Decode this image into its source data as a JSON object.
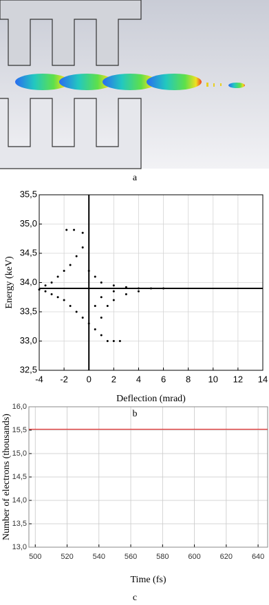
{
  "panel_labels": [
    "a",
    "b",
    "c"
  ],
  "chart_data": [
    {
      "type": "scatter",
      "xlabel": "Deflection (mrad)",
      "ylabel": "Energy (keV)",
      "x": [
        -4,
        -3.5,
        -3,
        -2.5,
        -2,
        -1.5,
        -1,
        -0.5,
        -1.8,
        -1.2,
        -0.5,
        0,
        0.5,
        1,
        2,
        3,
        4,
        5,
        6,
        -3.5,
        -3,
        -2.5,
        -2,
        -1.5,
        -1,
        -0.5,
        0,
        0.5,
        1,
        1.5,
        2,
        2.5,
        1,
        1.5,
        2,
        3,
        4,
        0.5,
        1,
        2
      ],
      "y": [
        33.88,
        33.95,
        34.0,
        34.1,
        34.2,
        34.3,
        34.45,
        34.6,
        34.9,
        34.9,
        34.85,
        34.2,
        34.1,
        34.0,
        33.95,
        33.92,
        33.9,
        33.9,
        33.9,
        33.85,
        33.8,
        33.75,
        33.7,
        33.6,
        33.5,
        33.4,
        33.3,
        33.2,
        33.1,
        33.0,
        33.0,
        33.0,
        33.4,
        33.6,
        33.7,
        33.8,
        33.85,
        33.6,
        33.75,
        33.85
      ],
      "color": "#000000",
      "reference_lines": {
        "x": 0,
        "y": 33.9
      },
      "xlim": [
        -4,
        14
      ],
      "xticks": [
        -4,
        -2,
        0,
        2,
        4,
        6,
        8,
        10,
        12,
        14
      ],
      "ylim": [
        32.5,
        35.5
      ],
      "yticks": [
        {
          "value": 32.5,
          "label": "32,5"
        },
        {
          "value": 33,
          "label": "33,0"
        },
        {
          "value": 33.5,
          "label": "33,5"
        },
        {
          "value": 34,
          "label": "34,0"
        },
        {
          "value": 34.5,
          "label": "34,5"
        },
        {
          "value": 35,
          "label": "35,0"
        },
        {
          "value": 35.5,
          "label": "35,5"
        }
      ],
      "grid": true
    },
    {
      "type": "line",
      "xlabel": "Time (fs)",
      "ylabel": "Number of electrons (thousands)",
      "x": [
        496,
        646
      ],
      "series": [
        {
          "color": "#e03030",
          "values": [
            15.52,
            15.52
          ]
        }
      ],
      "xlim": [
        496,
        646
      ],
      "xticks": [
        500,
        520,
        540,
        560,
        580,
        600,
        620,
        640
      ],
      "ylim": [
        13,
        16
      ],
      "yticks": [
        {
          "value": 13,
          "label": "13,0"
        },
        {
          "value": 13.5,
          "label": "13,5"
        },
        {
          "value": 14,
          "label": "14,0"
        },
        {
          "value": 14.5,
          "label": "14,5"
        },
        {
          "value": 15,
          "label": "15,0"
        },
        {
          "value": 15.5,
          "label": "15,5"
        },
        {
          "value": 16,
          "label": "16,0"
        }
      ],
      "grid": true
    }
  ]
}
